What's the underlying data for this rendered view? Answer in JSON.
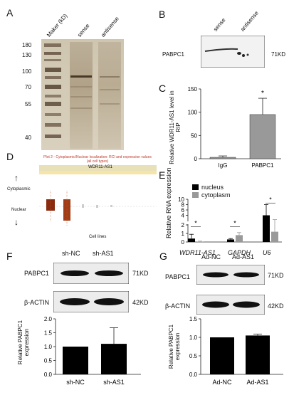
{
  "panels": {
    "a": {
      "letter": "A",
      "lanes": [
        "Maker (kD)",
        "sense",
        "antisense"
      ],
      "markers": [
        "180",
        "130",
        "100",
        "70",
        "55",
        "40"
      ]
    },
    "b": {
      "letter": "B",
      "lanes": [
        "sense",
        "antisense"
      ],
      "protein": "PABPC1",
      "size": "71KD"
    },
    "c": {
      "letter": "C",
      "ylabel": "Relative WDR11-AS1 level in RIP",
      "ticks": [
        "150",
        "100",
        "50",
        "0"
      ],
      "sig": "*"
    },
    "d": {
      "letter": "D",
      "title": "Plot 2 - Cytoplasmic/Nuclear localization: RCI and expression values (all cell types)",
      "gene": "WDR11-AS1",
      "cytoplasmic": "Cytoplasmic",
      "nuclear": "Nuclear",
      "xlabel": "Cell lines"
    },
    "e": {
      "letter": "E",
      "ylabel": "Relative RNA expression",
      "legend": [
        "nucleus",
        "cytoplasm"
      ],
      "ticks": [
        "10",
        "8",
        "6",
        "4",
        "2",
        "1",
        "0"
      ],
      "sig": "*"
    },
    "f": {
      "letter": "F",
      "lanes": [
        "sh-NC",
        "sh-AS1"
      ],
      "rows": [
        {
          "protein": "PABPC1",
          "size": "71KD"
        },
        {
          "protein": "β-ACTIN",
          "size": "42KD"
        }
      ],
      "ylabel": "Relative PABPC1 expression",
      "ticks": [
        "2.0",
        "1.5",
        "1.0",
        "0.5",
        "0.0"
      ]
    },
    "g": {
      "letter": "G",
      "lanes": [
        "Ad-NC",
        "Ad-AS1"
      ],
      "rows": [
        {
          "protein": "PABPC1",
          "size": "71KD"
        },
        {
          "protein": "β-ACTIN",
          "size": "42KD"
        }
      ],
      "ylabel": "Relative PABPC1 expression",
      "ticks": [
        "1.5",
        "1.0",
        "0.5",
        "0.0"
      ]
    }
  },
  "chart_data": [
    {
      "panel": "C",
      "type": "bar",
      "categories": [
        "IgG",
        "PABPC1"
      ],
      "values": [
        3,
        95
      ],
      "errors": [
        3,
        35
      ],
      "colors": [
        "#999999",
        "#999999"
      ],
      "ylabel": "Relative WDR11-AS1 level in RIP",
      "ylim": [
        0,
        150
      ],
      "significance": "*"
    },
    {
      "panel": "E",
      "type": "bar",
      "categories": [
        "WDR11-AS1",
        "GAPDH",
        "U6"
      ],
      "series": [
        {
          "name": "nucleus",
          "color": "#000000",
          "values": [
            0.4,
            0.3,
            4.0
          ],
          "errors": [
            0.5,
            0.1,
            4.0
          ]
        },
        {
          "name": "cytoplasm",
          "color": "#999999",
          "values": [
            0.05,
            0.8,
            1.2
          ],
          "errors": [
            0.05,
            0.3,
            1.2
          ]
        }
      ],
      "ylabel": "Relative RNA expression",
      "ylim": [
        0,
        10
      ],
      "significance": [
        "*",
        "*",
        "*"
      ]
    },
    {
      "panel": "F",
      "type": "bar",
      "categories": [
        "sh-NC",
        "sh-AS1"
      ],
      "values": [
        1.0,
        1.1
      ],
      "errors": [
        0,
        0.58
      ],
      "color": "#000000",
      "ylabel": "Relative PABPC1 expression",
      "ylim": [
        0,
        2.0
      ]
    },
    {
      "panel": "G",
      "type": "bar",
      "categories": [
        "Ad-NC",
        "Ad-AS1"
      ],
      "values": [
        1.0,
        1.05
      ],
      "errors": [
        0,
        0.04
      ],
      "color": "#000000",
      "ylabel": "Relative PABPC1 expression",
      "ylim": [
        0,
        1.5
      ]
    }
  ]
}
